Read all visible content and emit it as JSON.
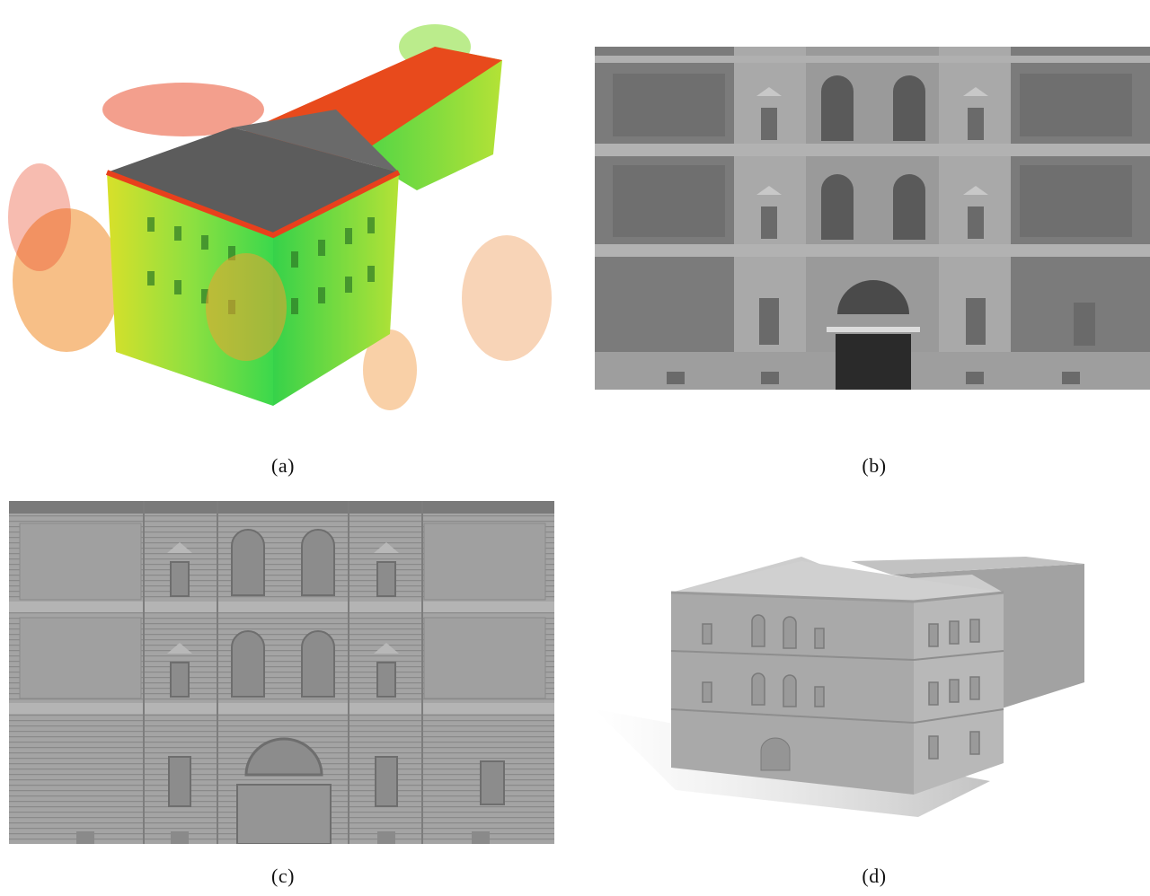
{
  "figure": {
    "panels": [
      {
        "id": "a",
        "caption": "(a)"
      },
      {
        "id": "b",
        "caption": "(b)"
      },
      {
        "id": "c",
        "caption": "(c)"
      },
      {
        "id": "d",
        "caption": "(d)"
      }
    ]
  },
  "colors": {
    "point_cloud_red": "#e8401c",
    "point_cloud_orange": "#f08a24",
    "point_cloud_yellow": "#e8e81c",
    "point_cloud_green": "#4ee04a",
    "roof_gray": "#5c5c5c",
    "depth_gray_dark": "#6c6c6c",
    "depth_gray_light": "#a8a8a8",
    "mesh_gray": "#9a9a9a"
  }
}
